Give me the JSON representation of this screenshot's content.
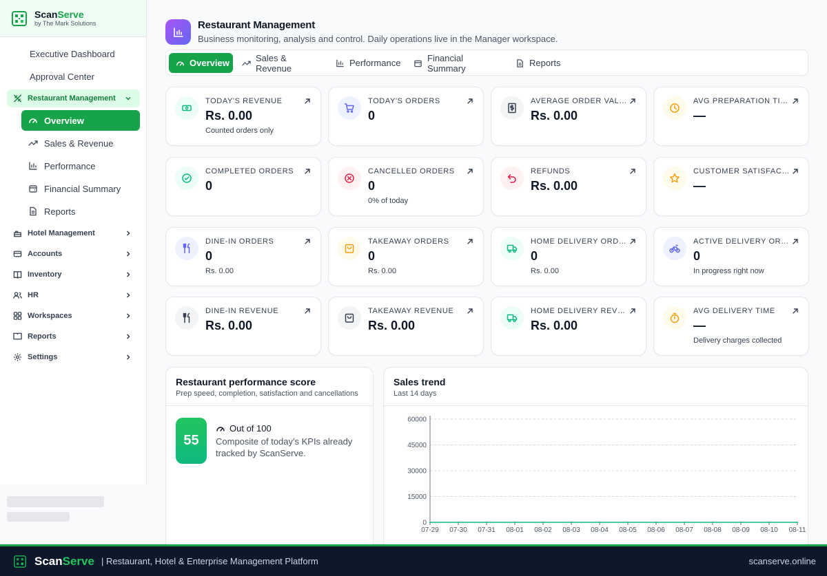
{
  "brand": {
    "name_part1": "Scan",
    "name_part2": "Serve",
    "subtitle": "by The Mark Solutions"
  },
  "sidebar": {
    "top_items": [
      {
        "label": "Executive Dashboard",
        "icon": "dashboard-icon"
      },
      {
        "label": "Approval Center",
        "icon": "approval-icon"
      }
    ],
    "active_group": {
      "label": "Restaurant Management",
      "icon": "restaurant-icon"
    },
    "sub_items": [
      {
        "label": "Overview",
        "icon": "gauge-icon",
        "active": true
      },
      {
        "label": "Sales & Revenue",
        "icon": "trend-icon"
      },
      {
        "label": "Performance",
        "icon": "bar-chart-icon"
      },
      {
        "label": "Financial Summary",
        "icon": "wallet-icon"
      },
      {
        "label": "Reports",
        "icon": "file-icon"
      }
    ],
    "groups": [
      {
        "label": "Hotel Management",
        "icon": "hotel-icon"
      },
      {
        "label": "Accounts",
        "icon": "accounts-icon"
      },
      {
        "label": "Inventory",
        "icon": "inventory-icon"
      },
      {
        "label": "HR",
        "icon": "users-icon"
      },
      {
        "label": "Workspaces",
        "icon": "grid-icon"
      },
      {
        "label": "Reports",
        "icon": "reports-icon"
      },
      {
        "label": "Settings",
        "icon": "gear-icon"
      }
    ]
  },
  "header": {
    "title": "Restaurant Management",
    "subtitle": "Business monitoring, analysis and control. Daily operations live in the Manager workspace."
  },
  "tabs": [
    {
      "label": "Overview",
      "active": true
    },
    {
      "label": "Sales & Revenue"
    },
    {
      "label": "Performance"
    },
    {
      "label": "Financial Summary"
    },
    {
      "label": "Reports"
    }
  ],
  "kpis": [
    {
      "label": "TODAY'S REVENUE",
      "value": "Rs. 0.00",
      "note": "Counted orders only",
      "icon": "cash-icon",
      "color": "#10b981",
      "bg": "#ecfdf5"
    },
    {
      "label": "TODAY'S ORDERS",
      "value": "0",
      "note": "",
      "icon": "cart-icon",
      "color": "#6366f1",
      "bg": "#eef2ff"
    },
    {
      "label": "AVERAGE ORDER VALUE",
      "value": "Rs. 0.00",
      "note": "",
      "icon": "receipt-icon",
      "color": "#374151",
      "bg": "#f3f4f6"
    },
    {
      "label": "AVG PREPARATION TIME",
      "value": "—",
      "note": "",
      "icon": "clock-icon",
      "color": "#f59e0b",
      "bg": "#fffbeb"
    },
    {
      "label": "COMPLETED ORDERS",
      "value": "0",
      "note": "",
      "icon": "check-circle-icon",
      "color": "#10b981",
      "bg": "#ecfdf5"
    },
    {
      "label": "CANCELLED ORDERS",
      "value": "0",
      "note": "0% of today",
      "icon": "x-circle-icon",
      "color": "#e11d48",
      "bg": "#fff1f2"
    },
    {
      "label": "REFUNDS",
      "value": "Rs. 0.00",
      "note": "",
      "icon": "undo-icon",
      "color": "#e11d48",
      "bg": "#fff1f2"
    },
    {
      "label": "CUSTOMER SATISFACTION",
      "value": "—",
      "note": "",
      "icon": "star-icon",
      "color": "#f59e0b",
      "bg": "#fffbeb"
    },
    {
      "label": "DINE-IN ORDERS",
      "value": "0",
      "note": "Rs. 0.00",
      "icon": "utensils-icon",
      "color": "#6366f1",
      "bg": "#eef2ff"
    },
    {
      "label": "TAKEAWAY ORDERS",
      "value": "0",
      "note": "Rs. 0.00",
      "icon": "bag-icon",
      "color": "#f59e0b",
      "bg": "#fffbeb"
    },
    {
      "label": "HOME DELIVERY ORDERS",
      "value": "0",
      "note": "Rs. 0.00",
      "icon": "truck-icon",
      "color": "#10b981",
      "bg": "#ecfdf5"
    },
    {
      "label": "ACTIVE DELIVERY ORDERS",
      "value": "0",
      "note": "In progress right now",
      "icon": "bike-icon",
      "color": "#6366f1",
      "bg": "#eef2ff"
    },
    {
      "label": "DINE-IN REVENUE",
      "value": "Rs. 0.00",
      "note": "",
      "icon": "utensils-icon",
      "color": "#374151",
      "bg": "#f3f4f6"
    },
    {
      "label": "TAKEAWAY REVENUE",
      "value": "Rs. 0.00",
      "note": "",
      "icon": "bag-icon",
      "color": "#374151",
      "bg": "#f3f4f6"
    },
    {
      "label": "HOME DELIVERY REVENUE",
      "value": "Rs. 0.00",
      "note": "",
      "icon": "truck-icon",
      "color": "#10b981",
      "bg": "#ecfdf5"
    },
    {
      "label": "AVG DELIVERY TIME",
      "value": "—",
      "note": "Delivery charges collected",
      "icon": "timer-icon",
      "color": "#f59e0b",
      "bg": "#fffbeb"
    }
  ],
  "score_panel": {
    "title": "Restaurant performance score",
    "subtitle": "Prep speed, completion, satisfaction and cancellations",
    "score": "55",
    "heading": "Out of 100",
    "description": "Composite of today's KPIs already tracked by ScanServe."
  },
  "sales_panel": {
    "title": "Sales trend",
    "subtitle": "Last 14 days"
  },
  "chart_data": {
    "type": "line",
    "x": [
      "07-29",
      "07-30",
      "07-31",
      "08-01",
      "08-02",
      "08-03",
      "08-04",
      "08-05",
      "08-06",
      "08-07",
      "08-08",
      "08-09",
      "08-10",
      "08-11"
    ],
    "series": [
      {
        "values": [
          0,
          0,
          0,
          0,
          0,
          0,
          0,
          0,
          0,
          0,
          0,
          0,
          0,
          0
        ]
      }
    ],
    "yticks": [
      0,
      15000,
      30000,
      45000,
      60000
    ],
    "ylim": [
      0,
      60000
    ],
    "grid": true,
    "line_color": "#10b981"
  },
  "footer": {
    "brand_part1": "Scan",
    "brand_part2": "Serve",
    "tagline": "| Restaurant, Hotel & Enterprise Management Platform",
    "url": "scanserve.online"
  }
}
